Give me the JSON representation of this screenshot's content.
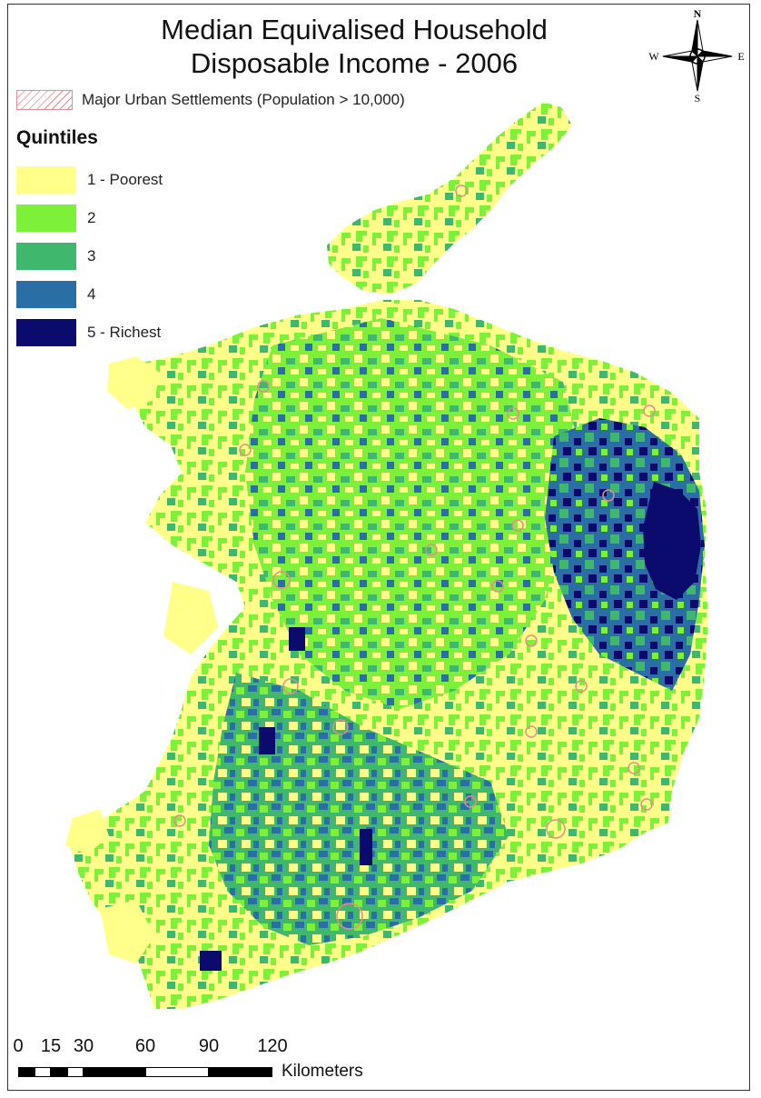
{
  "map": {
    "title_line1": "Median Equivalised Household",
    "title_line2": "Disposable Income - 2006",
    "urban_legend_label": "Major Urban Settlements (Population > 10,000)",
    "urban_hatch_color": "#e8888f",
    "legend_title": "Quintiles",
    "quintiles": [
      {
        "label": "1 - Poorest",
        "color": "#ffff8a"
      },
      {
        "label": "2",
        "color": "#7df03a"
      },
      {
        "label": "3",
        "color": "#3fb86e"
      },
      {
        "label": "4",
        "color": "#2a6ea6"
      },
      {
        "label": "5 - Richest",
        "color": "#0b0b6e"
      }
    ],
    "compass": {
      "n": "N",
      "s": "S",
      "e": "E",
      "w": "W",
      "icon": "compass-rose-icon"
    },
    "scale": {
      "ticks": [
        "0",
        "15",
        "30",
        "60",
        "90",
        "120"
      ],
      "units": "Kilometers"
    }
  }
}
